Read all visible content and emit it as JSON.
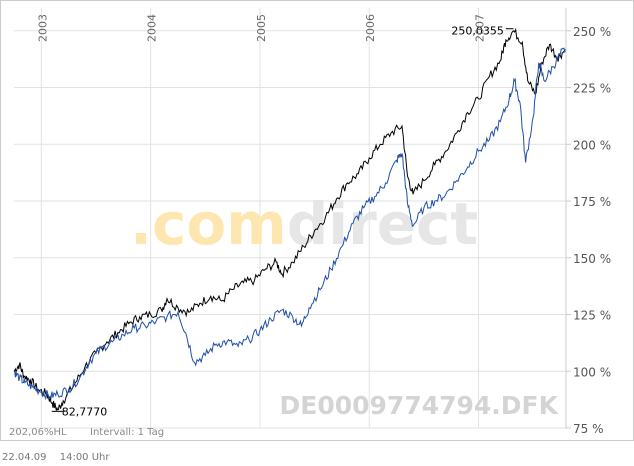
{
  "watermark": ".comdirect",
  "chart_data": {
    "type": "line",
    "x_ticks": [
      "2003",
      "2004",
      "2005",
      "2006",
      "2007"
    ],
    "y_ticks": [
      {
        "value": 250,
        "label": "250 %"
      },
      {
        "value": 225,
        "label": "225 %"
      },
      {
        "value": 200,
        "label": "200 %"
      },
      {
        "value": 175,
        "label": "175 %"
      },
      {
        "value": 150,
        "label": "150 %"
      },
      {
        "value": 125,
        "label": "125 %"
      },
      {
        "value": 100,
        "label": "100 %"
      },
      {
        "value": 75,
        "label": "75 %"
      }
    ],
    "ylim": [
      75,
      253
    ],
    "xlim": [
      2002.75,
      2007.8
    ],
    "grid": true,
    "max_annotation": {
      "label": "250,0355",
      "x": 2007.25,
      "y": 250.04
    },
    "min_annotation": {
      "label": "82,7770",
      "x": 2003.15,
      "y": 82.78
    },
    "isin_label": "DE0009774794.DFK",
    "bottom_left_label": "202,06%HL",
    "interval_label": "Intervall: 1 Tag",
    "series": [
      {
        "color": "#000000",
        "points": [
          [
            2002.75,
            100
          ],
          [
            2002.8,
            103
          ],
          [
            2002.84,
            98
          ],
          [
            2002.9,
            96
          ],
          [
            2002.97,
            92
          ],
          [
            2003.05,
            90
          ],
          [
            2003.1,
            86
          ],
          [
            2003.15,
            83
          ],
          [
            2003.2,
            87
          ],
          [
            2003.3,
            94
          ],
          [
            2003.4,
            102
          ],
          [
            2003.5,
            108
          ],
          [
            2003.6,
            113
          ],
          [
            2003.7,
            117
          ],
          [
            2003.8,
            121
          ],
          [
            2003.9,
            124
          ],
          [
            2004.0,
            125
          ],
          [
            2004.1,
            127
          ],
          [
            2004.15,
            132
          ],
          [
            2004.25,
            128
          ],
          [
            2004.35,
            126
          ],
          [
            2004.45,
            130
          ],
          [
            2004.55,
            133
          ],
          [
            2004.65,
            131
          ],
          [
            2004.75,
            136
          ],
          [
            2004.85,
            139
          ],
          [
            2004.95,
            140
          ],
          [
            2005.05,
            145
          ],
          [
            2005.15,
            148
          ],
          [
            2005.2,
            143
          ],
          [
            2005.3,
            148
          ],
          [
            2005.4,
            155
          ],
          [
            2005.5,
            162
          ],
          [
            2005.6,
            168
          ],
          [
            2005.7,
            176
          ],
          [
            2005.8,
            183
          ],
          [
            2005.9,
            187
          ],
          [
            2006.0,
            194
          ],
          [
            2006.1,
            200
          ],
          [
            2006.2,
            205
          ],
          [
            2006.3,
            208
          ],
          [
            2006.35,
            186
          ],
          [
            2006.4,
            178
          ],
          [
            2006.5,
            184
          ],
          [
            2006.6,
            191
          ],
          [
            2006.7,
            197
          ],
          [
            2006.8,
            205
          ],
          [
            2006.9,
            214
          ],
          [
            2007.0,
            220
          ],
          [
            2007.1,
            230
          ],
          [
            2007.2,
            237
          ],
          [
            2007.25,
            246
          ],
          [
            2007.32,
            250
          ],
          [
            2007.4,
            245
          ],
          [
            2007.45,
            228
          ],
          [
            2007.52,
            222
          ],
          [
            2007.58,
            236
          ],
          [
            2007.65,
            244
          ],
          [
            2007.72,
            238
          ],
          [
            2007.78,
            241
          ]
        ]
      },
      {
        "color": "#1f4fa8",
        "points": [
          [
            2002.75,
            100
          ],
          [
            2002.8,
            97
          ],
          [
            2002.85,
            95
          ],
          [
            2002.92,
            93
          ],
          [
            2003.0,
            91
          ],
          [
            2003.08,
            89
          ],
          [
            2003.15,
            90
          ],
          [
            2003.25,
            92
          ],
          [
            2003.35,
            97
          ],
          [
            2003.45,
            105
          ],
          [
            2003.55,
            110
          ],
          [
            2003.65,
            113
          ],
          [
            2003.75,
            116
          ],
          [
            2003.85,
            119
          ],
          [
            2003.95,
            120
          ],
          [
            2004.05,
            122
          ],
          [
            2004.15,
            124
          ],
          [
            2004.25,
            126
          ],
          [
            2004.32,
            117
          ],
          [
            2004.4,
            104
          ],
          [
            2004.5,
            107
          ],
          [
            2004.6,
            112
          ],
          [
            2004.7,
            113
          ],
          [
            2004.8,
            111
          ],
          [
            2004.9,
            114
          ],
          [
            2005.0,
            118
          ],
          [
            2005.1,
            123
          ],
          [
            2005.2,
            127
          ],
          [
            2005.3,
            124
          ],
          [
            2005.38,
            120
          ],
          [
            2005.45,
            128
          ],
          [
            2005.55,
            136
          ],
          [
            2005.65,
            145
          ],
          [
            2005.75,
            155
          ],
          [
            2005.85,
            165
          ],
          [
            2005.95,
            172
          ],
          [
            2006.05,
            177
          ],
          [
            2006.15,
            183
          ],
          [
            2006.25,
            193
          ],
          [
            2006.3,
            196
          ],
          [
            2006.35,
            174
          ],
          [
            2006.4,
            164
          ],
          [
            2006.5,
            172
          ],
          [
            2006.6,
            175
          ],
          [
            2006.7,
            178
          ],
          [
            2006.8,
            184
          ],
          [
            2006.9,
            190
          ],
          [
            2007.0,
            197
          ],
          [
            2007.1,
            202
          ],
          [
            2007.2,
            210
          ],
          [
            2007.28,
            220
          ],
          [
            2007.33,
            228
          ],
          [
            2007.38,
            218
          ],
          [
            2007.43,
            192
          ],
          [
            2007.5,
            212
          ],
          [
            2007.55,
            236
          ],
          [
            2007.6,
            228
          ],
          [
            2007.68,
            234
          ],
          [
            2007.75,
            240
          ],
          [
            2007.8,
            242
          ]
        ]
      }
    ]
  },
  "footer": {
    "date": "22.04.09",
    "time": "14:00 Uhr"
  }
}
